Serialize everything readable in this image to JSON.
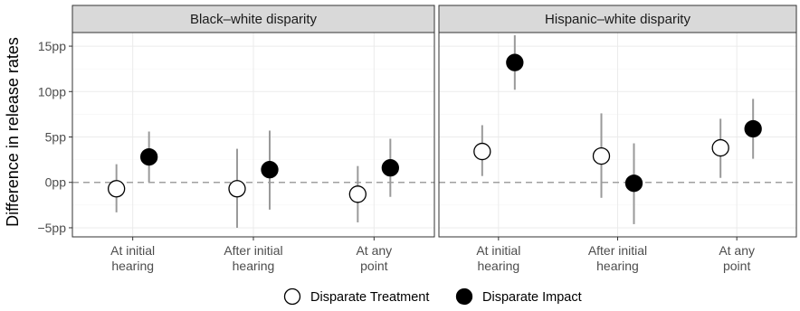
{
  "chart_data": {
    "type": "scatter",
    "ylabel": "Difference in release rates",
    "categories": [
      "At initial\nhearing",
      "After initial\nhearing",
      "At any\npoint"
    ],
    "yticks": [
      {
        "value": -5,
        "label": "−5pp"
      },
      {
        "value": 0,
        "label": "0pp"
      },
      {
        "value": 5,
        "label": "5pp"
      },
      {
        "value": 10,
        "label": "10pp"
      },
      {
        "value": 15,
        "label": "15pp"
      }
    ],
    "ylim": [
      -6,
      16.5
    ],
    "reference_line": 0,
    "series_styles": {
      "Disparate Treatment": {
        "fill": "#ffffff",
        "stroke": "#000000"
      },
      "Disparate Impact": {
        "fill": "#000000",
        "stroke": "#000000"
      }
    },
    "panels": [
      {
        "title": "Black–white disparity",
        "series": [
          {
            "name": "Disparate Treatment",
            "values": [
              -0.7,
              -0.7,
              -1.3
            ],
            "lower": [
              -3.3,
              -5.0,
              -4.4
            ],
            "upper": [
              2.0,
              3.7,
              1.8
            ]
          },
          {
            "name": "Disparate Impact",
            "values": [
              2.8,
              1.4,
              1.6
            ],
            "lower": [
              0.0,
              -3.0,
              -1.6
            ],
            "upper": [
              5.6,
              5.7,
              4.8
            ]
          }
        ]
      },
      {
        "title": "Hispanic–white disparity",
        "series": [
          {
            "name": "Disparate Treatment",
            "values": [
              3.4,
              2.9,
              3.8
            ],
            "lower": [
              0.7,
              -1.7,
              0.5
            ],
            "upper": [
              6.3,
              7.6,
              7.0
            ]
          },
          {
            "name": "Disparate Impact",
            "values": [
              13.2,
              -0.1,
              5.9
            ],
            "lower": [
              10.2,
              -4.6,
              2.6
            ],
            "upper": [
              16.2,
              4.3,
              9.2
            ]
          }
        ]
      }
    ],
    "legend": {
      "position": "bottom",
      "entries": [
        "Disparate Treatment",
        "Disparate Impact"
      ]
    }
  }
}
